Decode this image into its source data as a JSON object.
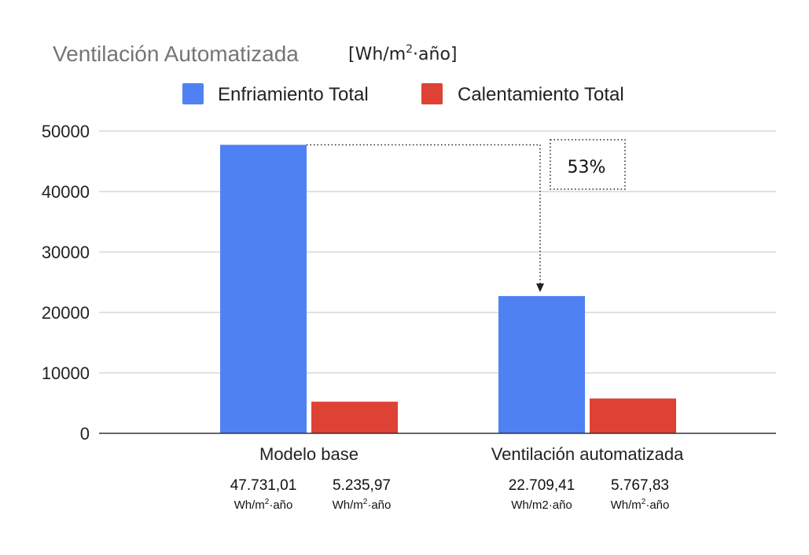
{
  "chart_data": {
    "type": "bar",
    "title": "Ventilación Automatizada",
    "unit_label": {
      "prefix": "[Wh/m",
      "sup": "2",
      "suffix": "·año]"
    },
    "categories": [
      "Modelo base",
      "Ventilación automatizada"
    ],
    "series": [
      {
        "name": "Enfriamiento Total",
        "color": "#4f81f3",
        "values": [
          47731.01,
          22709.41
        ]
      },
      {
        "name": "Calentamiento Total",
        "color": "#de4235",
        "values": [
          5235.97,
          5767.83
        ]
      }
    ],
    "ylim": [
      0,
      50000
    ],
    "yticks": [
      "0",
      "10000",
      "20000",
      "30000",
      "40000",
      "50000"
    ],
    "grid": true,
    "legend_position": "top",
    "data_labels": [
      [
        {
          "value": "47.731,01",
          "unit": {
            "prefix": "Wh/m",
            "sup": "2",
            "suffix": "·año"
          }
        },
        {
          "value": "5.235,97",
          "unit": {
            "prefix": "Wh/m",
            "sup": "2",
            "suffix": "·año"
          }
        }
      ],
      [
        {
          "value": "22.709,41",
          "unit": {
            "prefix": "Wh/m2·año",
            "sup": "",
            "suffix": ""
          }
        },
        {
          "value": "5.767,83",
          "unit": {
            "prefix": "Wh/m",
            "sup": "2",
            "suffix": "·año"
          }
        }
      ]
    ],
    "annotation": {
      "text": "53%"
    }
  }
}
